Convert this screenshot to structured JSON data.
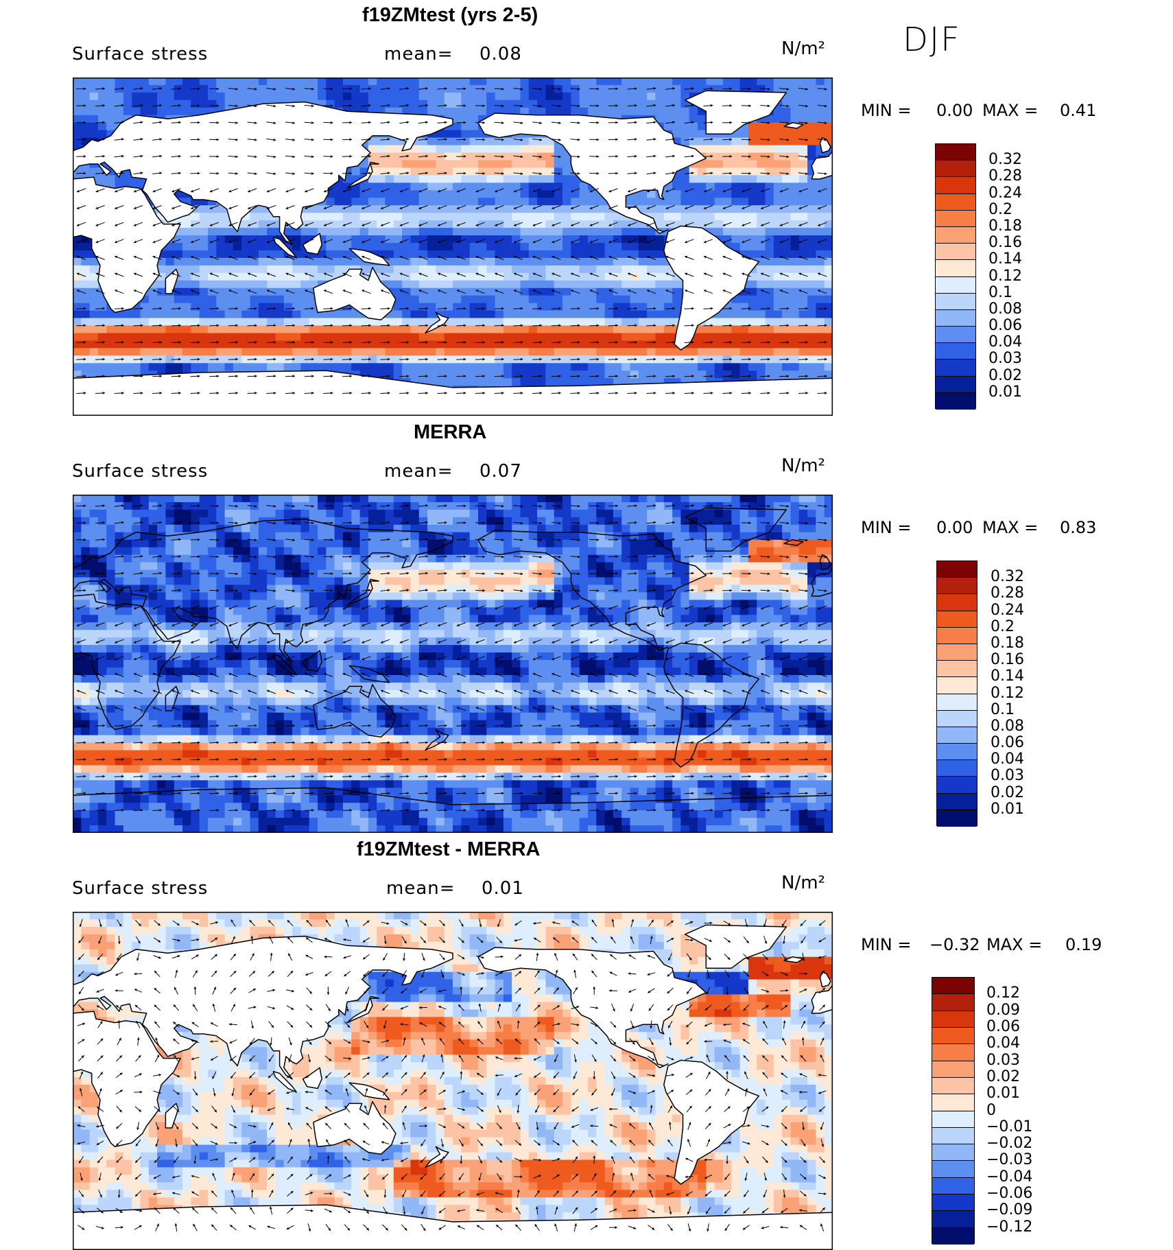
{
  "season": "DJF",
  "panels": [
    {
      "title": "f19ZMtest (yrs 2-5)",
      "variable": "Surface stress",
      "mean_label": "mean=",
      "mean_value": "0.08",
      "units": "N/m²",
      "min_label": "MIN =",
      "min_value": "0.00",
      "max_label": "MAX =",
      "max_value": "0.41",
      "palette": "full",
      "colorbar_levels": [
        "0.32",
        "0.28",
        "0.24",
        "0.2",
        "0.18",
        "0.16",
        "0.14",
        "0.12",
        "0.1",
        "0.08",
        "0.06",
        "0.04",
        "0.03",
        "0.02",
        "0.01"
      ],
      "colorbar_colors": [
        "#7a0403",
        "#b3200c",
        "#d9360e",
        "#ef5a1f",
        "#f77f47",
        "#fba176",
        "#fcc3a4",
        "#fde9d5",
        "#dfeefc",
        "#bcd6fb",
        "#91b7f7",
        "#5d8ff0",
        "#2f62e6",
        "#1439c8",
        "#06209a",
        "#010e6e"
      ],
      "field_style": "model"
    },
    {
      "title": "MERRA",
      "variable": "Surface stress",
      "mean_label": "mean=",
      "mean_value": "0.07",
      "units": "N/m²",
      "min_label": "MIN =",
      "min_value": "0.00",
      "max_label": "MAX =",
      "max_value": "0.83",
      "palette": "full",
      "colorbar_levels": [
        "0.32",
        "0.28",
        "0.24",
        "0.2",
        "0.18",
        "0.16",
        "0.14",
        "0.12",
        "0.1",
        "0.08",
        "0.06",
        "0.04",
        "0.03",
        "0.02",
        "0.01"
      ],
      "colorbar_colors": [
        "#7a0403",
        "#b3200c",
        "#d9360e",
        "#ef5a1f",
        "#f77f47",
        "#fba176",
        "#fcc3a4",
        "#fde9d5",
        "#dfeefc",
        "#bcd6fb",
        "#91b7f7",
        "#5d8ff0",
        "#2f62e6",
        "#1439c8",
        "#06209a",
        "#010e6e"
      ],
      "field_style": "reanalysis"
    },
    {
      "title": "f19ZMtest - MERRA",
      "variable": "Surface stress",
      "mean_label": "mean=",
      "mean_value": "0.01",
      "units": "N/m²",
      "min_label": "MIN =",
      "min_value": "−0.32",
      "max_label": "MAX =",
      "max_value": "0.19",
      "palette": "diff",
      "colorbar_levels": [
        "0.12",
        "0.09",
        "0.06",
        "0.04",
        "0.03",
        "0.02",
        "0.01",
        "0",
        "−0.01",
        "−0.02",
        "−0.03",
        "−0.04",
        "−0.06",
        "−0.09",
        "−0.12"
      ],
      "colorbar_colors": [
        "#7a0403",
        "#b3200c",
        "#d9360e",
        "#ef5a1f",
        "#f77f47",
        "#fba176",
        "#fcc3a4",
        "#fde9d5",
        "#dfeefc",
        "#bcd6fb",
        "#91b7f7",
        "#5d8ff0",
        "#2f62e6",
        "#1439c8",
        "#06209a",
        "#010e6e"
      ],
      "field_style": "difference"
    }
  ]
}
